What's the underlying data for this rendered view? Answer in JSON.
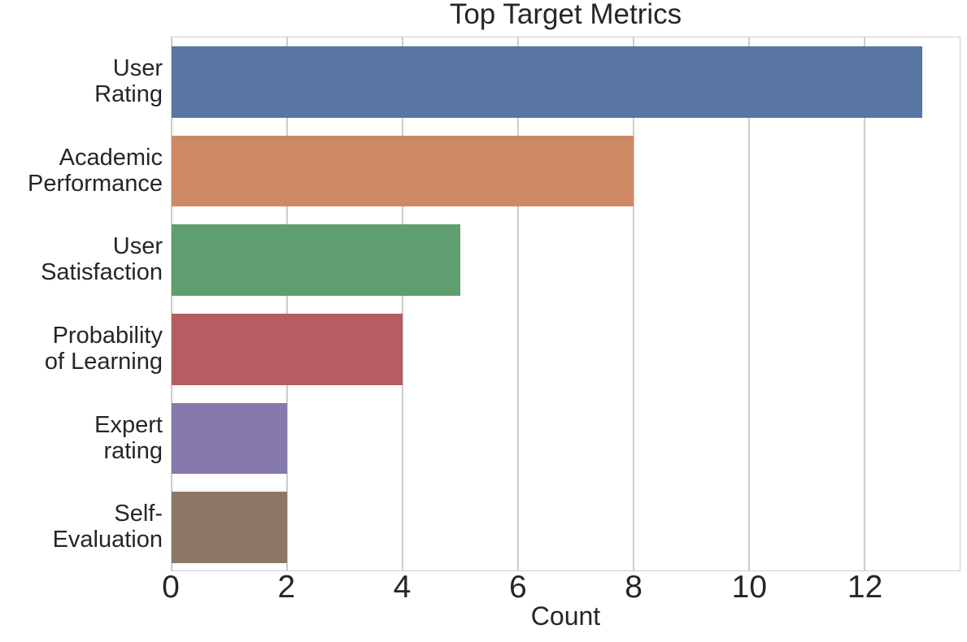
{
  "chart_data": {
    "type": "bar",
    "orientation": "horizontal",
    "title": "Top Target Metrics",
    "xlabel": "Count",
    "ylabel": "",
    "categories": [
      "User\nRating",
      "Academic\nPerformance",
      "User\nSatisfaction",
      "Probability\nof Learning",
      "Expert\nrating",
      "Self-\nEvaluation"
    ],
    "values": [
      13,
      8,
      5,
      4,
      2,
      2
    ],
    "bar_colors": [
      "#5875A4",
      "#CC8963",
      "#5F9E6E",
      "#B55D60",
      "#857AAB",
      "#8D7866"
    ],
    "xlim": [
      0,
      13.65
    ],
    "xticks": [
      0,
      2,
      4,
      6,
      8,
      10,
      12
    ],
    "grid": "vertical",
    "legend": "none",
    "bar_fraction_of_slot": 0.8,
    "colors": {
      "text": "#262626",
      "grid": "#cccccc",
      "background": "#ffffff"
    }
  }
}
